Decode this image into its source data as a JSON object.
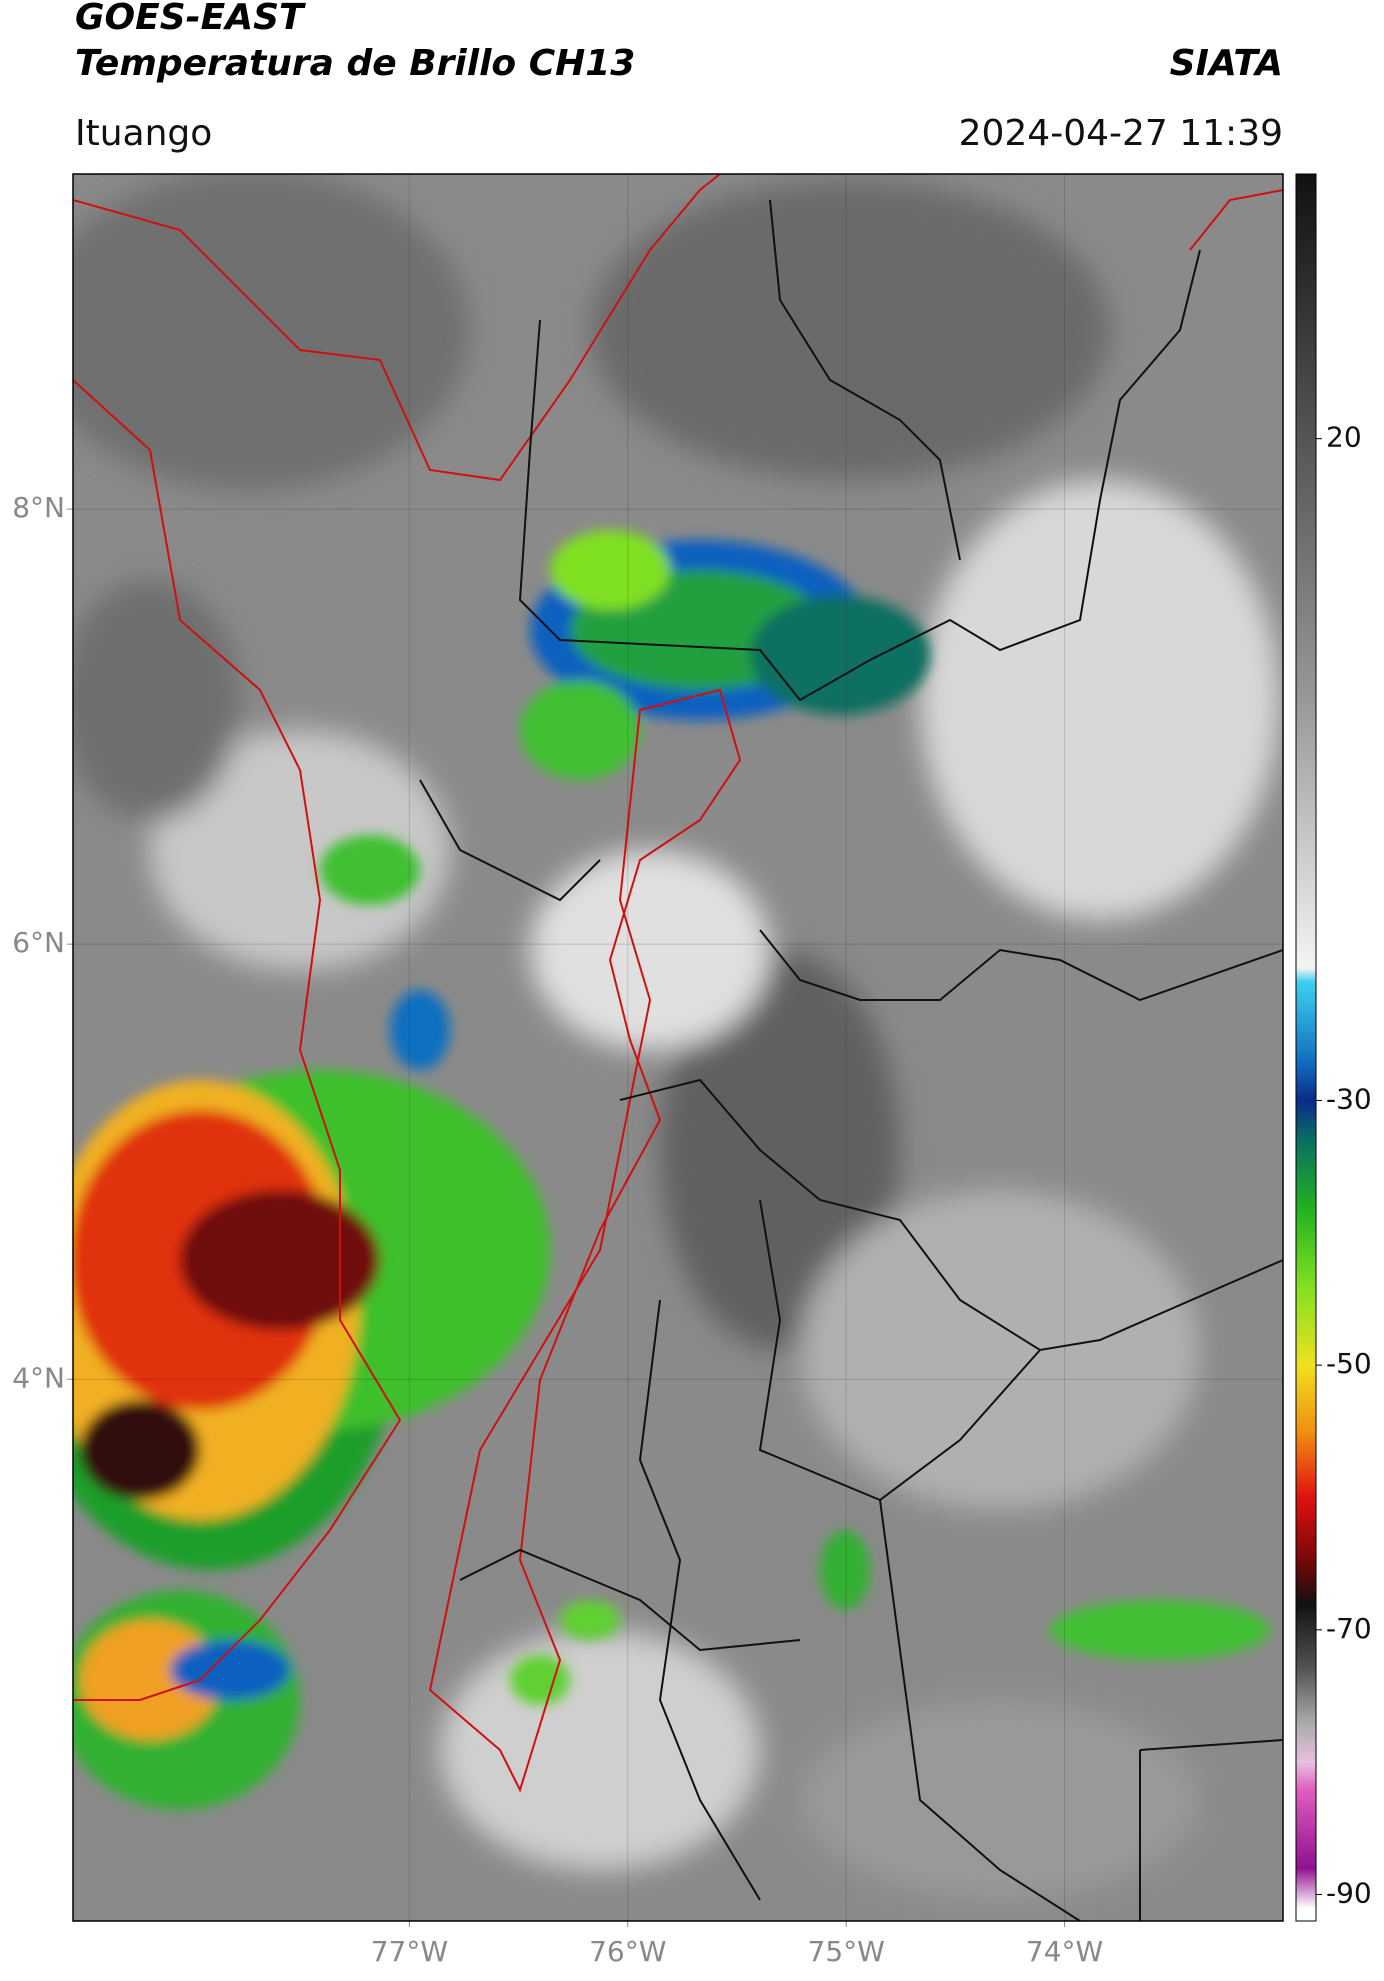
{
  "header": {
    "title": "GOES-EAST",
    "subtitle": "Temperatura de Brillo CH13",
    "source": "SIATA",
    "location": "Ituango",
    "datetime": "2024-04-27 11:39"
  },
  "map": {
    "xlim": [
      -78.54,
      -73.0
    ],
    "ylim": [
      1.51,
      9.54
    ],
    "xticks": [
      {
        "value": -77,
        "label": "77°W"
      },
      {
        "value": -76,
        "label": "76°W"
      },
      {
        "value": -75,
        "label": "75°W"
      },
      {
        "value": -74,
        "label": "74°W"
      }
    ],
    "yticks": [
      {
        "value": 8,
        "label": "8°N"
      },
      {
        "value": 6,
        "label": "6°N"
      },
      {
        "value": 4,
        "label": "4°N"
      }
    ],
    "grid": true
  },
  "colorbar": {
    "clim": [
      -92,
      40
    ],
    "ticks": [
      20,
      -30,
      -50,
      -70,
      -90
    ],
    "colormap": [
      {
        "value": 40,
        "color": "#111111"
      },
      {
        "value": 30,
        "color": "#333333"
      },
      {
        "value": 20,
        "color": "#555555"
      },
      {
        "value": 0,
        "color": "#999999"
      },
      {
        "value": -20,
        "color": "#f4f4f4"
      },
      {
        "value": -21,
        "color": "#40d0f0"
      },
      {
        "value": -27,
        "color": "#1070c0"
      },
      {
        "value": -30,
        "color": "#0a2a8a"
      },
      {
        "value": -33,
        "color": "#0a7060"
      },
      {
        "value": -38,
        "color": "#20b020"
      },
      {
        "value": -44,
        "color": "#80e020"
      },
      {
        "value": -50,
        "color": "#f0e020"
      },
      {
        "value": -55,
        "color": "#f09010"
      },
      {
        "value": -60,
        "color": "#e01010"
      },
      {
        "value": -65,
        "color": "#700808"
      },
      {
        "value": -68,
        "color": "#111111"
      },
      {
        "value": -73,
        "color": "#555555"
      },
      {
        "value": -77,
        "color": "#aaaaaa"
      },
      {
        "value": -80,
        "color": "#e8c0e0"
      },
      {
        "value": -82,
        "color": "#e060c0"
      },
      {
        "value": -88,
        "color": "#901090"
      },
      {
        "value": -91,
        "color": "#ffffff"
      }
    ]
  }
}
